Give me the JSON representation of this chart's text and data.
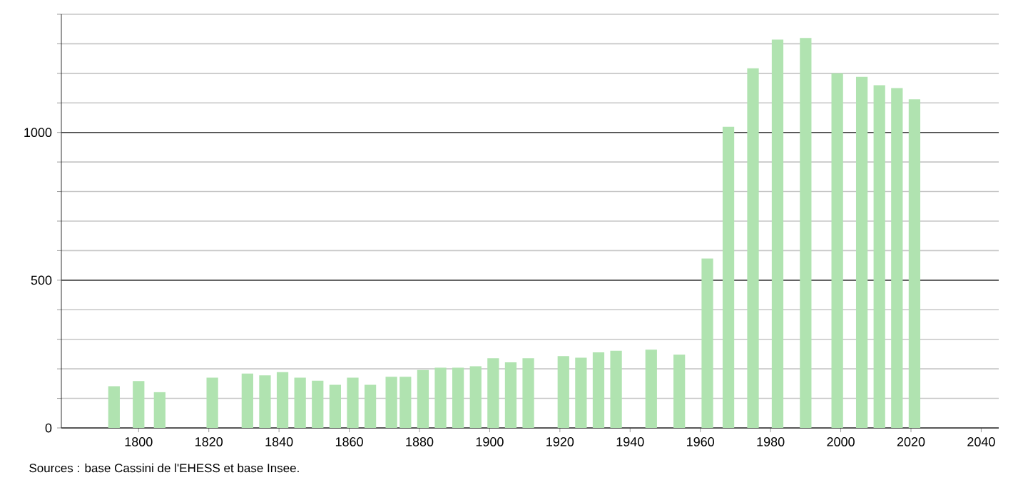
{
  "chart_data": {
    "type": "bar",
    "x": [
      1793,
      1800,
      1806,
      1821,
      1831,
      1836,
      1841,
      1846,
      1851,
      1856,
      1861,
      1866,
      1872,
      1876,
      1881,
      1886,
      1891,
      1896,
      1901,
      1906,
      1911,
      1921,
      1926,
      1931,
      1936,
      1946,
      1954,
      1962,
      1968,
      1975,
      1982,
      1990,
      1999,
      2006,
      2011,
      2016,
      2021
    ],
    "values": [
      141,
      159,
      121,
      170,
      184,
      178,
      189,
      170,
      160,
      146,
      170,
      146,
      173,
      173,
      196,
      204,
      204,
      209,
      236,
      222,
      236,
      243,
      238,
      256,
      261,
      265,
      248,
      573,
      1019,
      1217,
      1314,
      1320,
      1200,
      1188,
      1160,
      1150,
      1112
    ],
    "color": "#b0e3b0",
    "xlim": [
      1778,
      2045
    ],
    "xticks": [
      1800,
      1820,
      1840,
      1860,
      1880,
      1900,
      1920,
      1940,
      1960,
      1980,
      2000,
      2020,
      2040
    ],
    "ylim": [
      0,
      1400
    ],
    "yticks": [
      0,
      {
        "value": 100,
        "label": null
      },
      {
        "value": 200,
        "label": null
      },
      {
        "value": 300,
        "label": null
      },
      {
        "value": 400,
        "label": null
      },
      500,
      {
        "value": 600,
        "label": null
      },
      {
        "value": 700,
        "label": null
      },
      {
        "value": 800,
        "label": null
      },
      {
        "value": 900,
        "label": null
      },
      1000,
      {
        "value": 1100,
        "label": null
      },
      {
        "value": 1200,
        "label": null
      },
      {
        "value": 1300,
        "label": null
      },
      {
        "value": 1400,
        "label": null
      }
    ],
    "grid": "y",
    "annotations": [
      "Sources : base Cassini de l'EHESS et base Insee."
    ]
  }
}
